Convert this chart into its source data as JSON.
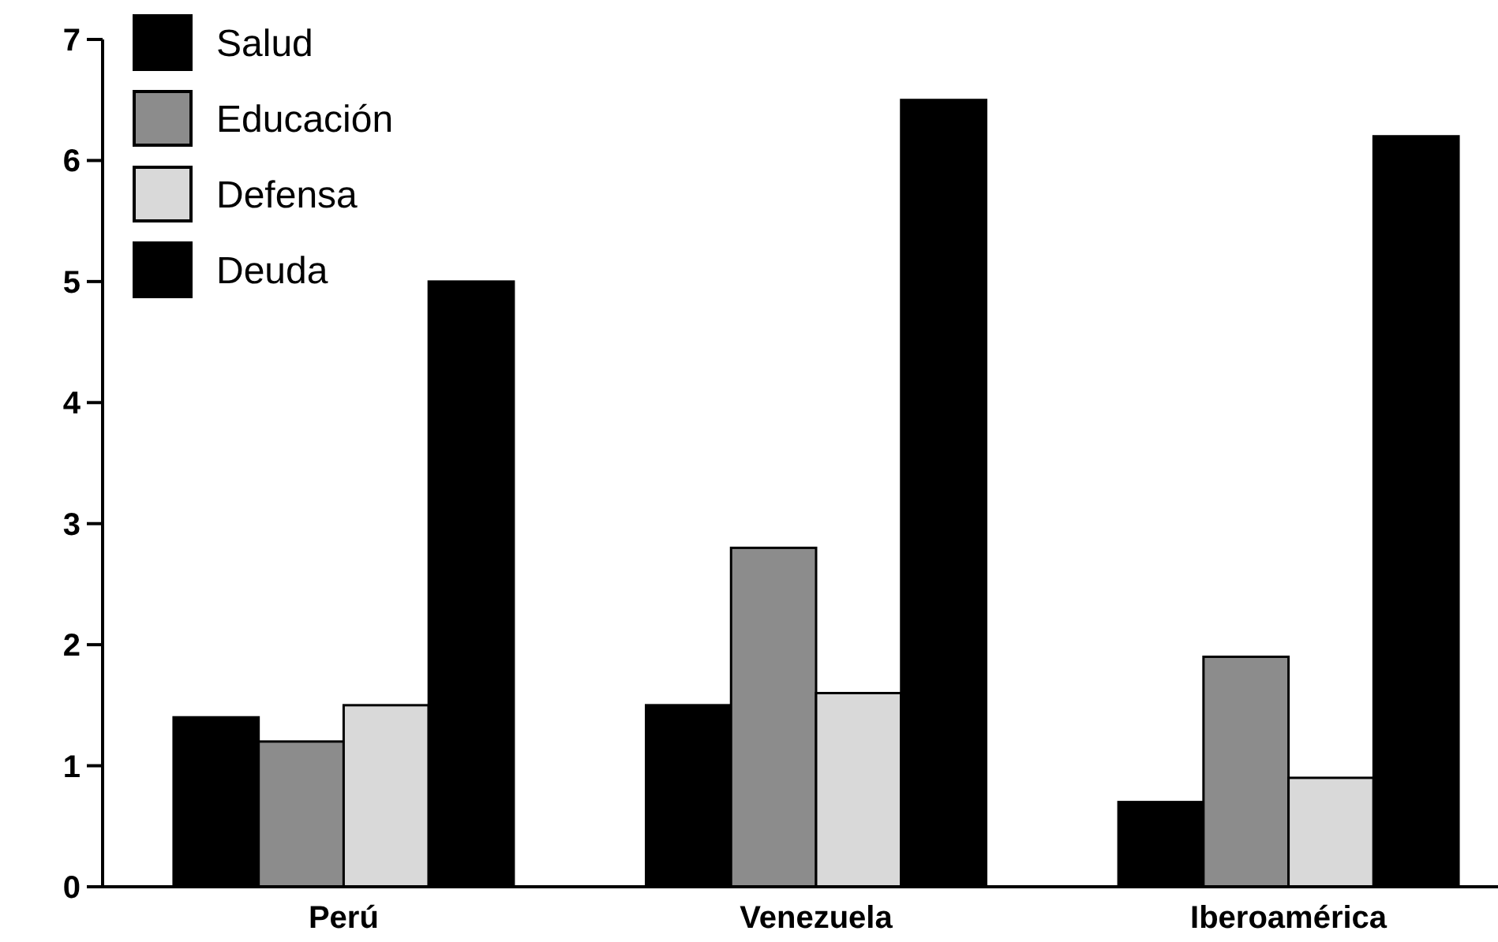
{
  "chart_data": {
    "type": "bar",
    "categories": [
      "Perú",
      "Venezuela",
      "Iberoamérica"
    ],
    "series": [
      {
        "name": "Salud",
        "color": "#000000",
        "values": [
          1.4,
          1.5,
          0.7
        ]
      },
      {
        "name": "Educación",
        "color": "#8c8c8c",
        "values": [
          1.2,
          2.8,
          1.9
        ]
      },
      {
        "name": "Defensa",
        "color": "#d9d9d9",
        "values": [
          1.5,
          1.6,
          0.9
        ]
      },
      {
        "name": "Deuda",
        "color": "#000000",
        "values": [
          5.0,
          6.5,
          6.2
        ]
      }
    ],
    "ylim": [
      0,
      7
    ],
    "yticks": [
      0,
      1,
      2,
      3,
      4,
      5,
      6,
      7
    ],
    "grid": false,
    "legend": "top left"
  }
}
